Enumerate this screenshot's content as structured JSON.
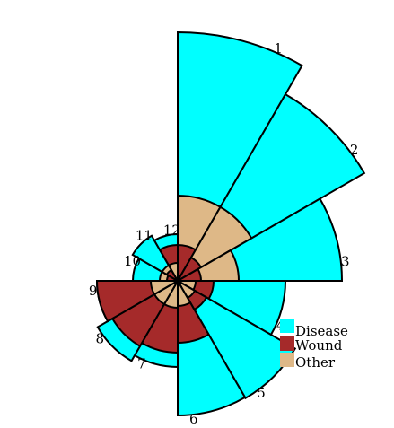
{
  "chart_data": {
    "type": "polar-area",
    "title": "",
    "categories": [
      "1",
      "2",
      "3",
      "4",
      "5",
      "6",
      "7",
      "8",
      "9",
      "10",
      "11",
      "12"
    ],
    "series": [
      {
        "name": "Disease",
        "color": "#00ffff",
        "values": [
          277,
          240,
          183,
          120,
          151,
          150,
          96,
          103,
          90,
          50,
          58,
          52
        ]
      },
      {
        "name": "Wound",
        "color": "#a52a2a",
        "values": [
          40,
          30,
          26,
          40,
          37,
          69,
          80,
          84,
          90,
          12,
          14,
          40
        ]
      },
      {
        "name": "Other",
        "color": "#deb887",
        "values": [
          95,
          95,
          68,
          20,
          22,
          28,
          30,
          30,
          30,
          20,
          20,
          20
        ]
      }
    ],
    "legend": {
      "position": "bottom-right",
      "entries": [
        "Disease",
        "Wound",
        "Other"
      ]
    },
    "angle_start": "north",
    "direction": "clockwise"
  }
}
